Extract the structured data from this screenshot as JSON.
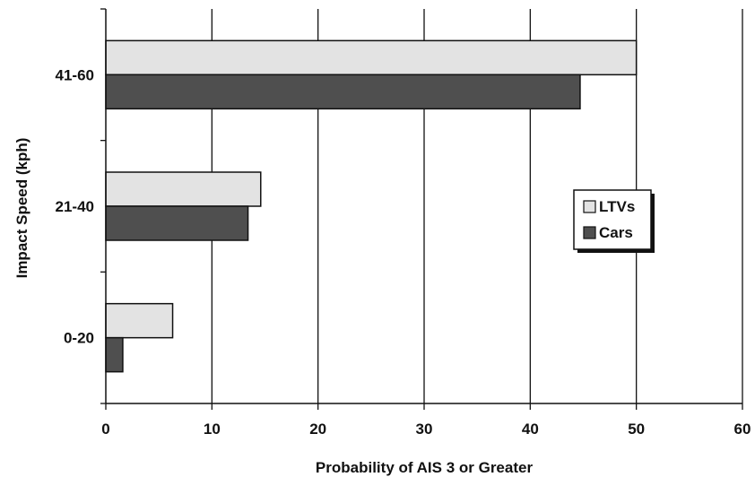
{
  "chart_data": {
    "type": "bar",
    "orientation": "horizontal",
    "categories": [
      "0-20",
      "21-40",
      "41-60"
    ],
    "series": [
      {
        "name": "LTVs",
        "values": [
          6.3,
          14.6,
          50.0
        ],
        "color": "#e3e3e3"
      },
      {
        "name": "Cars",
        "values": [
          1.6,
          13.4,
          44.7
        ],
        "color": "#4f4f4f"
      }
    ],
    "xlabel": "Probability of AIS 3 or Greater",
    "ylabel": "Impact Speed (kph)",
    "xlim": [
      0,
      60
    ],
    "xticks": [
      "0",
      "10",
      "20",
      "30",
      "40",
      "50",
      "60"
    ],
    "grid": "vertical",
    "legend_position": "right"
  }
}
